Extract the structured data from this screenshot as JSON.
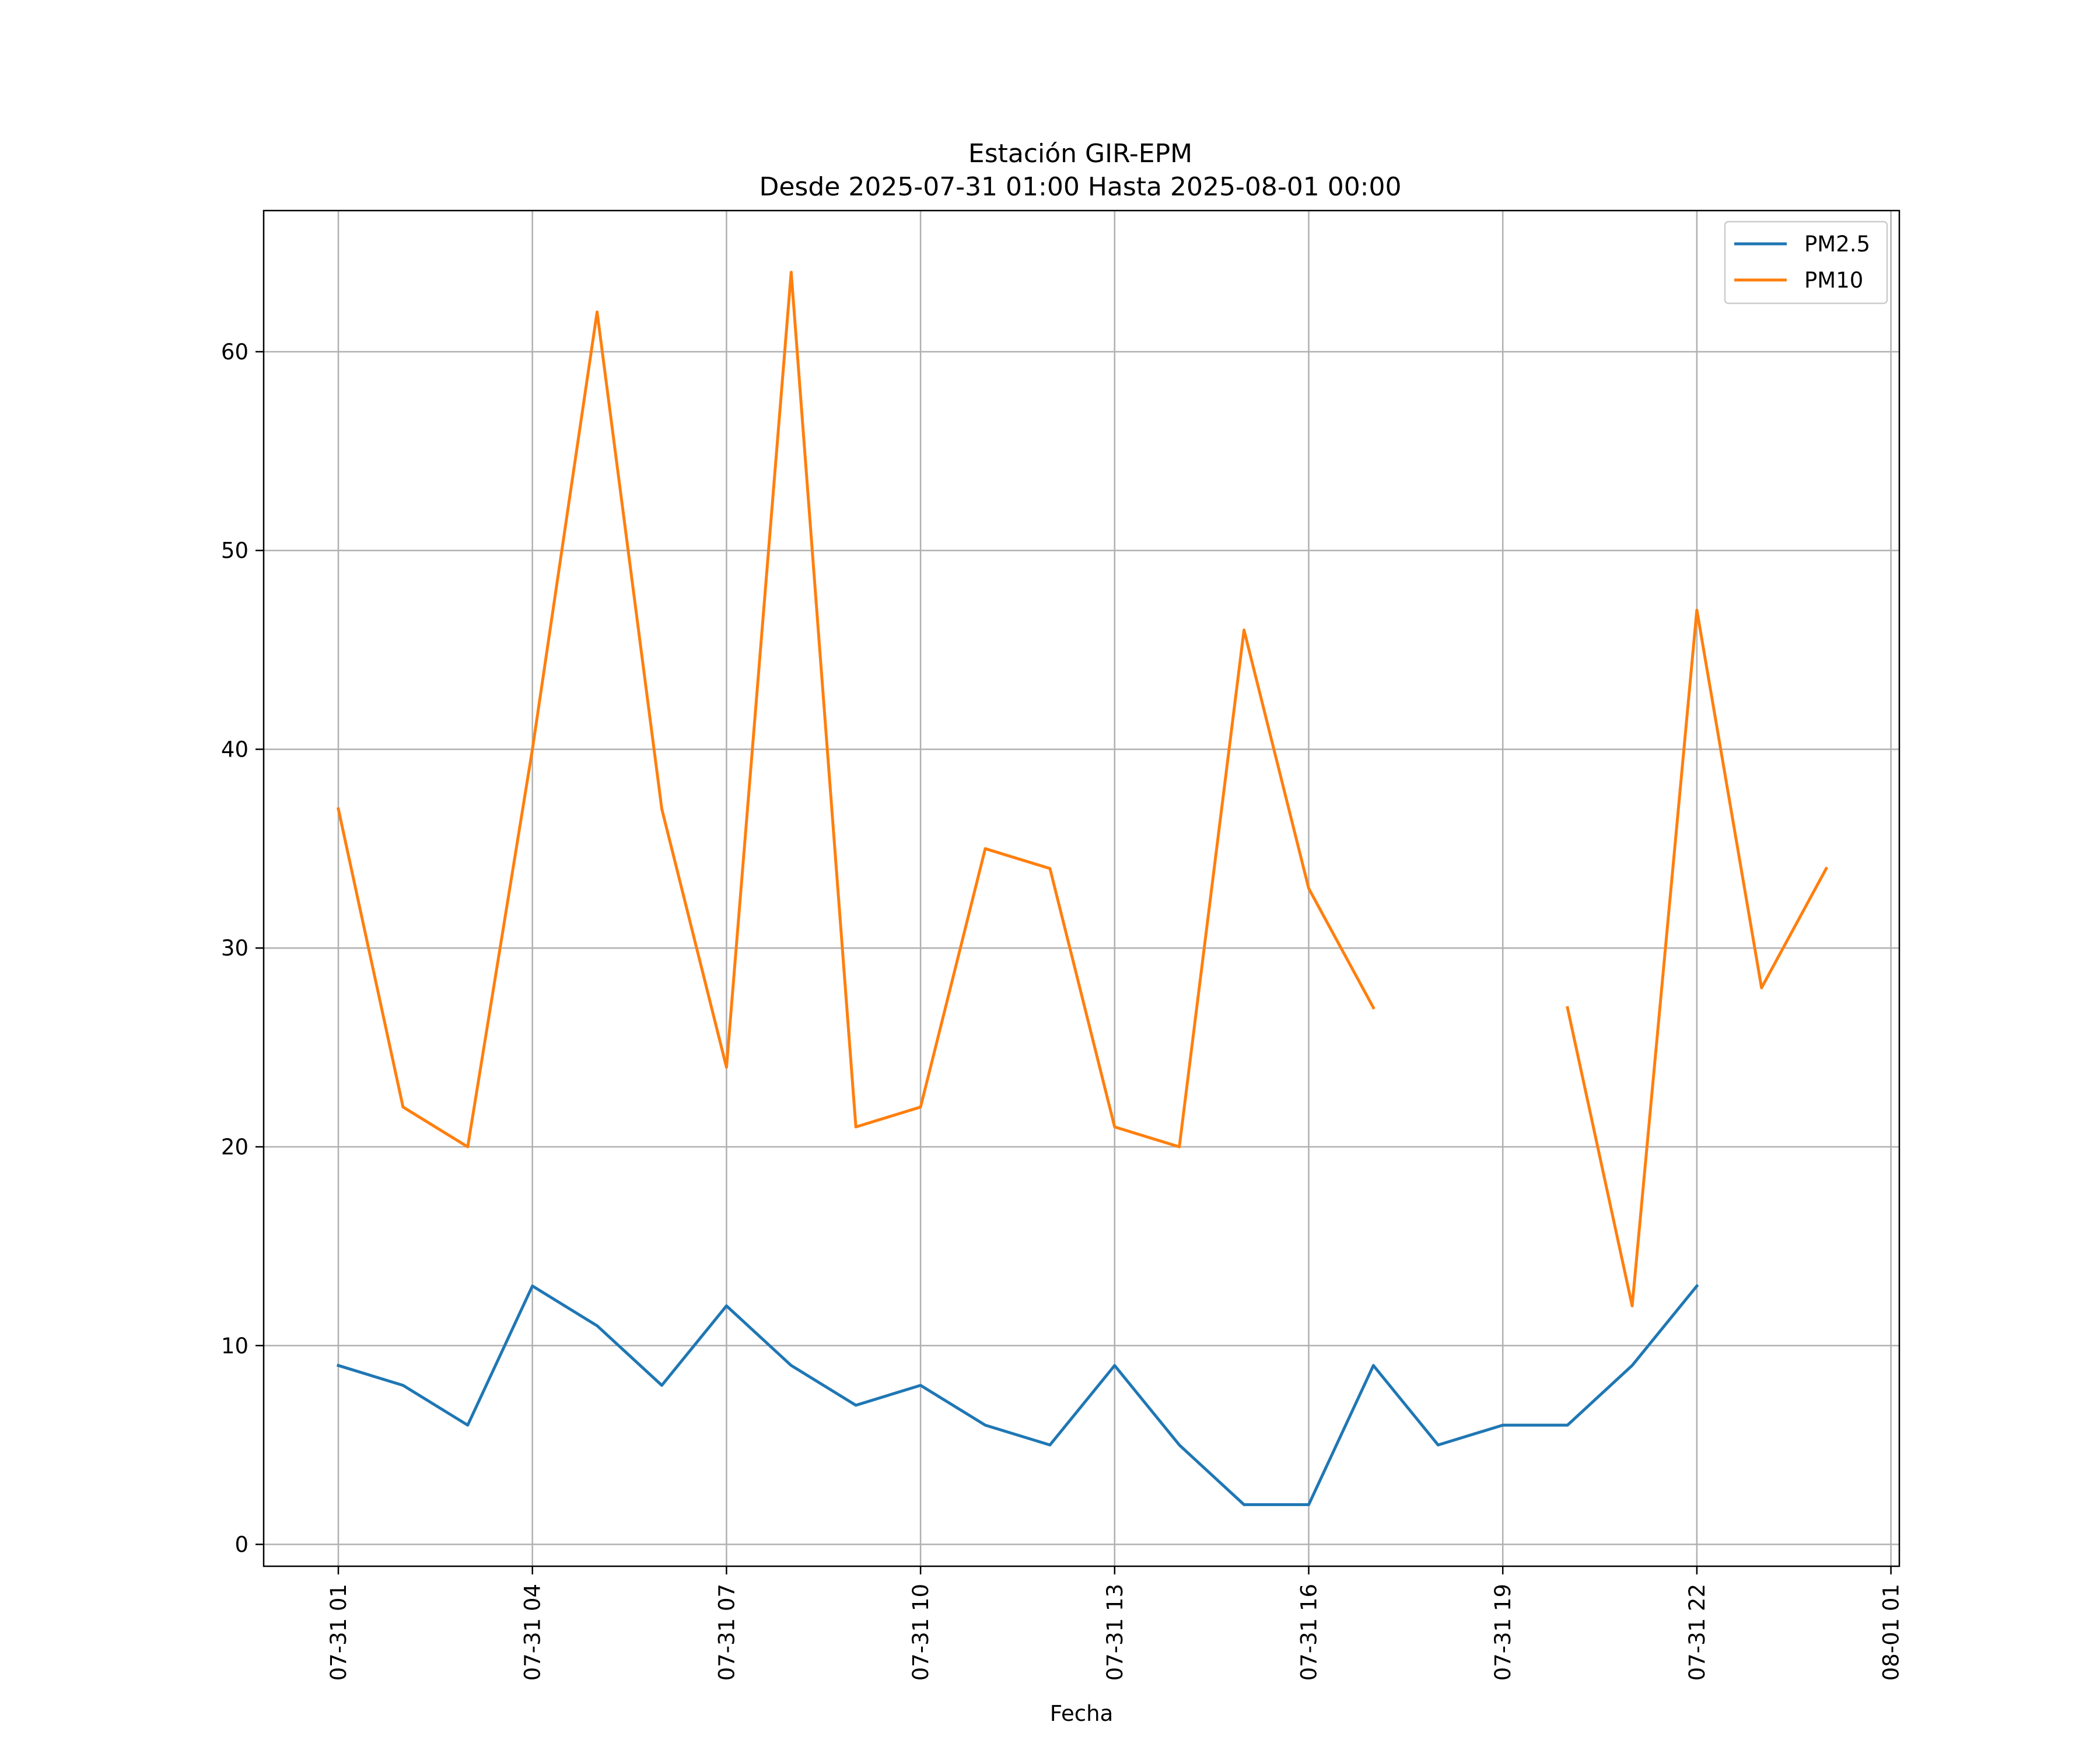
{
  "chart_data": {
    "type": "line",
    "title": "Estación GIR-EPM",
    "subtitle": "Desde 2025-07-31 01:00 Hasta 2025-08-01 00:00",
    "xlabel": "Fecha",
    "ylabel": "",
    "x": [
      "07-31 01",
      "07-31 02",
      "07-31 03",
      "07-31 04",
      "07-31 05",
      "07-31 06",
      "07-31 07",
      "07-31 08",
      "07-31 09",
      "07-31 10",
      "07-31 11",
      "07-31 12",
      "07-31 13",
      "07-31 14",
      "07-31 15",
      "07-31 16",
      "07-31 17",
      "07-31 18",
      "07-31 19",
      "07-31 20",
      "07-31 21",
      "07-31 22",
      "07-31 23",
      "08-01 00"
    ],
    "x_ticks": [
      "07-31 01",
      "07-31 04",
      "07-31 07",
      "07-31 10",
      "07-31 13",
      "07-31 16",
      "07-31 19",
      "07-31 22",
      "08-01 01"
    ],
    "y_ticks": [
      0,
      10,
      20,
      30,
      40,
      50,
      60
    ],
    "ylim": [
      -1.1,
      67.1
    ],
    "xlim": [
      "07-31 00:00 (approx)",
      "08-01 01:10 (approx)"
    ],
    "grid": true,
    "legend_position": "top-right",
    "series": [
      {
        "name": "PM2.5",
        "color": "#1f77b4",
        "values": [
          9,
          8,
          6,
          13,
          11,
          8,
          12,
          9,
          7,
          8,
          6,
          5,
          9,
          5,
          2,
          2,
          9,
          5,
          6,
          6,
          9,
          13,
          null,
          null
        ]
      },
      {
        "name": "PM10",
        "color": "#ff7f0e",
        "values": [
          37,
          22,
          20,
          40,
          62,
          37,
          24,
          64,
          21,
          22,
          35,
          34,
          21,
          20,
          46,
          33,
          27,
          null,
          null,
          27,
          12,
          47,
          28,
          34
        ]
      }
    ]
  }
}
